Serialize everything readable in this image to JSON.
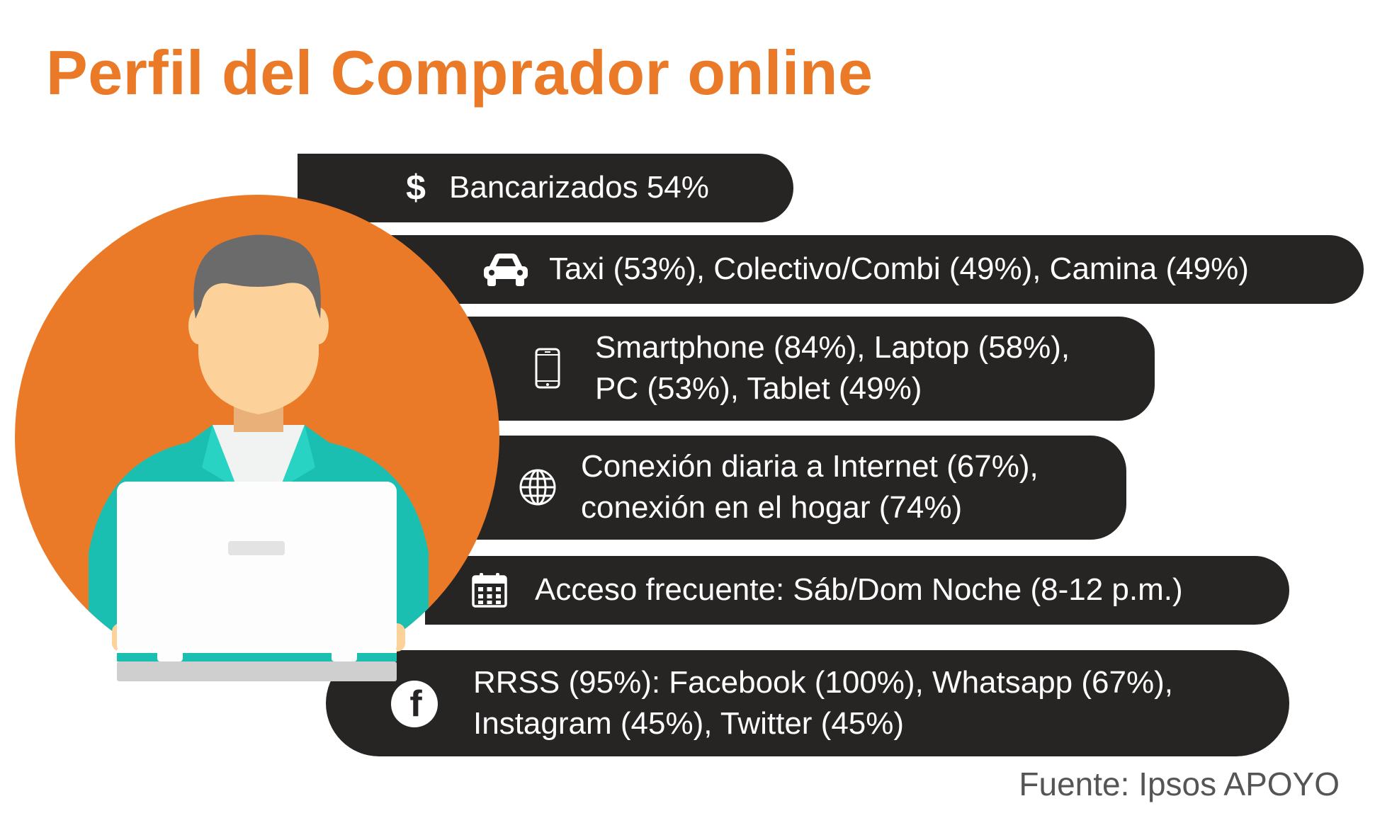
{
  "title": "Perfil del Comprador online",
  "items": [
    {
      "icon": "dollar-icon",
      "lines": [
        "Bancarizados 54%"
      ]
    },
    {
      "icon": "car-icon",
      "lines": [
        "Taxi (53%), Colectivo/Combi (49%), Camina (49%)"
      ]
    },
    {
      "icon": "smartphone-icon",
      "lines": [
        "Smartphone (84%), Laptop (58%),",
        "PC (53%), Tablet (49%)"
      ]
    },
    {
      "icon": "globe-icon",
      "lines": [
        "Conexión diaria a Internet (67%),",
        "conexión en el hogar (74%)"
      ]
    },
    {
      "icon": "calendar-icon",
      "lines": [
        "Acceso frecuente: Sáb/Dom Noche (8-12 p.m.)"
      ]
    },
    {
      "icon": "facebook-icon",
      "lines": [
        "RRSS (95%): Facebook (100%), Whatsapp (67%),",
        "Instagram (45%), Twitter (45%)"
      ]
    }
  ],
  "source": "Fuente: Ipsos APOYO",
  "colors": {
    "accent": "#ea7a27",
    "pill": "#272424",
    "teal": "#1bbfb2"
  }
}
